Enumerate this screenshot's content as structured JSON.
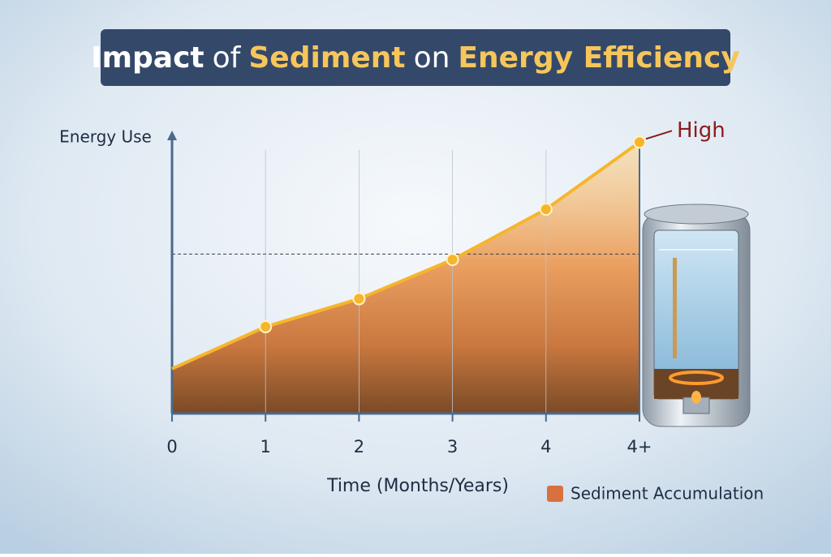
{
  "chart_data": {
    "type": "line",
    "title_parts": [
      {
        "text": "Impact",
        "highlight": false
      },
      {
        "text": "of",
        "highlight": false
      },
      {
        "text": "Sediment",
        "highlight": true
      },
      {
        "text": "on",
        "highlight": false
      },
      {
        "text": "Energy Efficiency",
        "highlight": true
      }
    ],
    "y_label": "Energy Use",
    "x_label": "Time (Months/Years)",
    "annotation": "High",
    "categories": [
      "0",
      "1",
      "2",
      "3",
      "4",
      "4+"
    ],
    "series": [
      {
        "name": "Sediment Accumulation",
        "color": "#d9703f",
        "line_color": "#f7b52c",
        "values": [
          16,
          31,
          41,
          55,
          73,
          97
        ]
      }
    ],
    "ylim": [
      0,
      100
    ],
    "reference_line": 57,
    "grid": true
  }
}
